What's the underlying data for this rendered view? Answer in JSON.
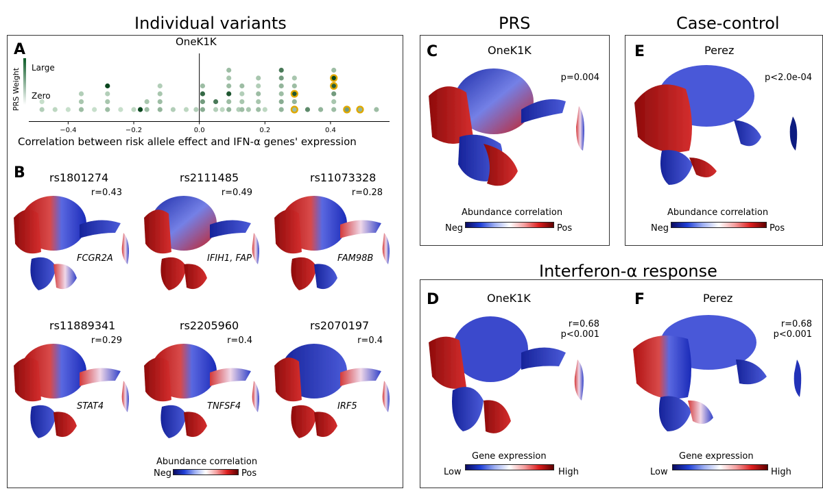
{
  "sections": {
    "individual": "Individual variants",
    "prs": "PRS",
    "case_control": "Case-control",
    "interferon": "Interferon-α response"
  },
  "panelA": {
    "label": "A",
    "title": "OneK1K",
    "legend_title": "PRS Weight",
    "legend_large": "Large",
    "legend_zero": "Zero",
    "xlabel": "Correlation between risk allele effect and IFN-α genes' expression",
    "ticks": [
      "−0.4",
      "−0.2",
      "0.0",
      "0.2",
      "0.4"
    ]
  },
  "chart_data": {
    "type": "scatter",
    "subtype": "dot-stack (beeswarm)",
    "title": "OneK1K",
    "xlabel": "Correlation between risk allele effect and IFN-α genes' expression",
    "ylabel": "PRS Weight",
    "xlim": [
      -0.52,
      0.58
    ],
    "xticks": [
      -0.4,
      -0.2,
      0.0,
      0.2,
      0.4
    ],
    "weight_scale": "0 = Zero, 1 = Large",
    "highlight_color": "#e0a800",
    "stacks": [
      {
        "x": -0.48,
        "weights": [
          0.2,
          0.1
        ]
      },
      {
        "x": -0.44,
        "weights": [
          0.15
        ]
      },
      {
        "x": -0.4,
        "weights": [
          0.1
        ]
      },
      {
        "x": -0.36,
        "weights": [
          0.3,
          0.25,
          0.2
        ]
      },
      {
        "x": -0.32,
        "weights": [
          0.1
        ]
      },
      {
        "x": -0.28,
        "weights": [
          0.3,
          0.25,
          0.2,
          1.0
        ]
      },
      {
        "x": -0.24,
        "weights": [
          0.1
        ]
      },
      {
        "x": -0.2,
        "weights": [
          0.15
        ]
      },
      {
        "x": -0.18,
        "weights": [
          1.0
        ]
      },
      {
        "x": -0.16,
        "weights": [
          0.3,
          0.25
        ]
      },
      {
        "x": -0.12,
        "weights": [
          0.35,
          0.3,
          0.25,
          0.2
        ]
      },
      {
        "x": -0.08,
        "weights": [
          0.2
        ]
      },
      {
        "x": -0.04,
        "weights": [
          0.15
        ]
      },
      {
        "x": -0.01,
        "weights": [
          0.2
        ]
      },
      {
        "x": 0.01,
        "weights": [
          0.4,
          0.5,
          0.8,
          0.3
        ]
      },
      {
        "x": 0.05,
        "weights": [
          0.2,
          0.7
        ]
      },
      {
        "x": 0.07,
        "weights": [
          0.15
        ]
      },
      {
        "x": 0.09,
        "weights": [
          0.35,
          0.3,
          0.9,
          0.3,
          0.25,
          0.3
        ]
      },
      {
        "x": 0.12,
        "weights": [
          0.2
        ]
      },
      {
        "x": 0.13,
        "weights": [
          0.3,
          0.25,
          0.2,
          0.3
        ]
      },
      {
        "x": 0.15,
        "weights": [
          0.25
        ]
      },
      {
        "x": 0.18,
        "weights": [
          0.3,
          0.25,
          0.3,
          0.2,
          0.25
        ]
      },
      {
        "x": 0.2,
        "weights": [
          0.15
        ]
      },
      {
        "x": 0.25,
        "weights": [
          0.35,
          0.4,
          0.3,
          0.35,
          0.5,
          0.7
        ]
      },
      {
        "x": 0.29,
        "weights": [
          0.3,
          0.35,
          0.9,
          0.3,
          0.25
        ],
        "highlight": [
          0,
          2
        ]
      },
      {
        "x": 0.33,
        "weights": [
          0.6
        ]
      },
      {
        "x": 0.37,
        "weights": [
          0.35
        ]
      },
      {
        "x": 0.41,
        "weights": [
          0.3,
          0.25,
          0.5,
          0.85,
          1.0,
          0.3
        ],
        "highlight": [
          3,
          4
        ]
      },
      {
        "x": 0.45,
        "weights": [
          0.5
        ],
        "highlight": [
          0
        ]
      },
      {
        "x": 0.49,
        "weights": [
          0.35
        ],
        "highlight": [
          0
        ]
      },
      {
        "x": 0.54,
        "weights": [
          0.3
        ]
      }
    ],
    "umap_panels": [
      {
        "panel": "B",
        "variant": "rs1801274",
        "r": 0.43,
        "gene": "FCGR2A",
        "colorbar": "Abundance correlation"
      },
      {
        "panel": "B",
        "variant": "rs2111485",
        "r": 0.49,
        "gene": "IFIH1, FAP",
        "colorbar": "Abundance correlation"
      },
      {
        "panel": "B",
        "variant": "rs11073328",
        "r": 0.28,
        "gene": "FAM98B",
        "colorbar": "Abundance correlation"
      },
      {
        "panel": "B",
        "variant": "rs11889341",
        "r": 0.29,
        "gene": "STAT4",
        "colorbar": "Abundance correlation"
      },
      {
        "panel": "B",
        "variant": "rs2205960",
        "r": 0.4,
        "gene": "TNFSF4",
        "colorbar": "Abundance correlation"
      },
      {
        "panel": "B",
        "variant": "rs2070197",
        "r": 0.4,
        "gene": "IRF5",
        "colorbar": "Abundance correlation"
      },
      {
        "panel": "C",
        "title": "OneK1K",
        "p": "0.004",
        "colorbar": "Abundance correlation"
      },
      {
        "panel": "E",
        "title": "Perez",
        "p": "<2.0e-04",
        "colorbar": "Abundance correlation"
      },
      {
        "panel": "D",
        "title": "OneK1K",
        "r": 0.68,
        "p": "<0.001",
        "colorbar": "Gene expression"
      },
      {
        "panel": "F",
        "title": "Perez",
        "r": 0.68,
        "p": "<0.001",
        "colorbar": "Gene expression"
      }
    ]
  },
  "panelB": {
    "label": "B",
    "variants": [
      {
        "id": "rs1801274",
        "r": "r=0.43",
        "gene": "FCGR2A"
      },
      {
        "id": "rs2111485",
        "r": "r=0.49",
        "gene": "IFIH1, FAP"
      },
      {
        "id": "rs11073328",
        "r": "r=0.28",
        "gene": "FAM98B"
      },
      {
        "id": "rs11889341",
        "r": "r=0.29",
        "gene": "STAT4"
      },
      {
        "id": "rs2205960",
        "r": "r=0.4",
        "gene": "TNFSF4"
      },
      {
        "id": "rs2070197",
        "r": "r=0.4",
        "gene": "IRF5"
      }
    ],
    "colorbar_title": "Abundance correlation",
    "neg": "Neg",
    "pos": "Pos"
  },
  "panelC": {
    "label": "C",
    "title": "OneK1K",
    "stat": "p=0.004",
    "colorbar_title": "Abundance correlation",
    "neg": "Neg",
    "pos": "Pos"
  },
  "panelE": {
    "label": "E",
    "title": "Perez",
    "stat": "p<2.0e-04",
    "colorbar_title": "Abundance correlation",
    "neg": "Neg",
    "pos": "Pos"
  },
  "panelD": {
    "label": "D",
    "title": "OneK1K",
    "stat_r": "r=0.68",
    "stat_p": "p<0.001",
    "colorbar_title": "Gene expression",
    "low": "Low",
    "high": "High"
  },
  "panelF": {
    "label": "F",
    "title": "Perez",
    "stat_r": "r=0.68",
    "stat_p": "p<0.001",
    "colorbar_title": "Gene expression",
    "low": "Low",
    "high": "High"
  }
}
